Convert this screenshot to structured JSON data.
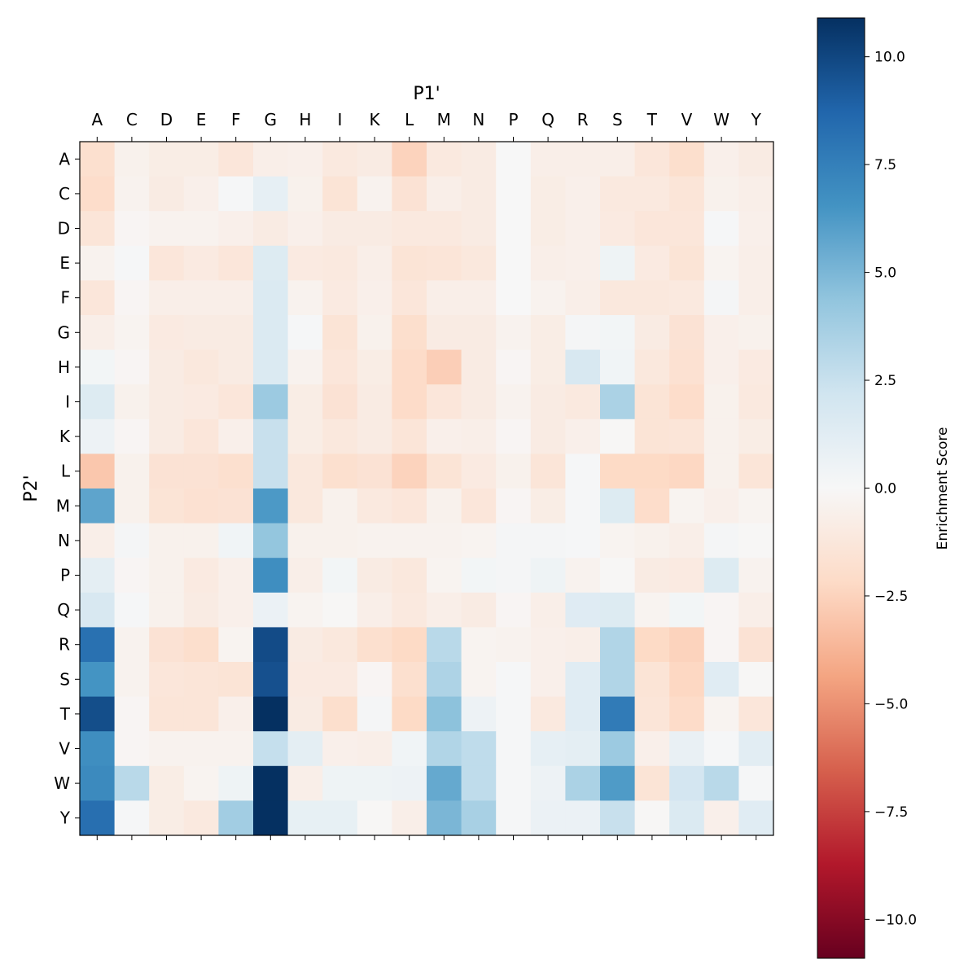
{
  "chart_data": {
    "type": "heatmap",
    "xlabel": "P1'",
    "ylabel": "P2'",
    "colorbar_label": "Enrichment Score",
    "colormap": "RdBu",
    "vlim": [
      -10.9,
      10.9
    ],
    "colorbar_ticks": [
      10.0,
      7.5,
      5.0,
      2.5,
      0.0,
      -2.5,
      -5.0,
      -7.5,
      -10.0
    ],
    "colorbar_tick_labels": [
      "10.0",
      "7.5",
      "5.0",
      "2.5",
      "0.0",
      "−2.5",
      "−5.0",
      "−7.5",
      "−10.0"
    ],
    "x_categories": [
      "A",
      "C",
      "D",
      "E",
      "F",
      "G",
      "H",
      "I",
      "K",
      "L",
      "M",
      "N",
      "P",
      "Q",
      "R",
      "S",
      "T",
      "V",
      "W",
      "Y"
    ],
    "y_categories": [
      "A",
      "C",
      "D",
      "E",
      "F",
      "G",
      "H",
      "I",
      "K",
      "L",
      "M",
      "N",
      "P",
      "Q",
      "R",
      "S",
      "T",
      "V",
      "W",
      "Y"
    ],
    "values": [
      [
        -1.8,
        -0.5,
        -0.8,
        -0.8,
        -1.3,
        -0.7,
        -0.6,
        -1.1,
        -0.9,
        -2.5,
        -1.1,
        -0.9,
        0,
        -0.7,
        -0.7,
        -0.7,
        -1.3,
        -1.9,
        -0.6,
        -0.9
      ],
      [
        -2.0,
        -0.4,
        -0.9,
        -0.6,
        0.1,
        1.0,
        -0.5,
        -1.5,
        -0.4,
        -1.6,
        -0.7,
        -0.9,
        0,
        -0.8,
        -0.6,
        -1.1,
        -1.1,
        -1.4,
        -0.5,
        -0.7
      ],
      [
        -1.4,
        -0.2,
        -0.4,
        -0.4,
        -0.6,
        -0.9,
        -0.6,
        -0.9,
        -0.9,
        -1.1,
        -1.1,
        -0.9,
        0,
        -0.8,
        -0.6,
        -1.0,
        -1.3,
        -1.3,
        0.1,
        -0.6
      ],
      [
        -0.4,
        0.1,
        -1.3,
        -1.0,
        -1.3,
        1.5,
        -1.0,
        -1.1,
        -0.7,
        -1.5,
        -1.4,
        -1.2,
        0,
        -0.7,
        -0.6,
        0.5,
        -1.0,
        -1.5,
        -0.3,
        -0.7
      ],
      [
        -1.3,
        -0.2,
        -0.7,
        -0.7,
        -0.7,
        1.6,
        -0.4,
        -1.0,
        -0.6,
        -1.3,
        -0.7,
        -0.7,
        0,
        -0.4,
        -0.7,
        -1.2,
        -1.2,
        -1.1,
        0.2,
        -0.7
      ],
      [
        -0.7,
        -0.3,
        -1.0,
        -0.9,
        -0.9,
        1.6,
        0.1,
        -1.5,
        -0.5,
        -1.9,
        -0.9,
        -0.9,
        -0.4,
        -0.8,
        0.2,
        0.3,
        -0.9,
        -1.6,
        -0.6,
        -0.5
      ],
      [
        0.3,
        -0.2,
        -0.9,
        -1.2,
        -0.9,
        1.6,
        -0.4,
        -1.3,
        -0.8,
        -2.1,
        -2.7,
        -0.9,
        -0.2,
        -0.8,
        1.8,
        0.4,
        -1.2,
        -1.7,
        -0.6,
        -1.0
      ],
      [
        1.5,
        -0.5,
        -0.9,
        -1.0,
        -1.3,
        4.0,
        -0.8,
        -1.6,
        -0.9,
        -2.1,
        -1.3,
        -0.9,
        -0.4,
        -0.9,
        -1.1,
        3.5,
        -1.5,
        -2.0,
        -0.5,
        -1.1
      ],
      [
        0.6,
        -0.2,
        -0.9,
        -1.3,
        -0.6,
        2.5,
        -0.8,
        -1.2,
        -0.9,
        -1.4,
        -0.6,
        -0.7,
        -0.2,
        -0.9,
        -0.6,
        -0.1,
        -1.5,
        -1.4,
        -0.5,
        -0.8
      ],
      [
        -3.0,
        -0.5,
        -1.6,
        -1.6,
        -1.8,
        2.5,
        -1.2,
        -1.8,
        -1.6,
        -2.5,
        -1.5,
        -1.0,
        -0.5,
        -1.4,
        0.1,
        -2.2,
        -2.2,
        -2.3,
        -0.5,
        -1.4
      ],
      [
        5.8,
        -0.5,
        -1.5,
        -1.7,
        -1.6,
        6.3,
        -1.2,
        -0.5,
        -1.1,
        -1.3,
        -0.5,
        -1.3,
        -0.2,
        -0.8,
        0.1,
        1.5,
        -2.0,
        -0.3,
        -0.6,
        -0.3
      ],
      [
        -0.7,
        0.2,
        -0.5,
        -0.5,
        0.4,
        4.3,
        -0.5,
        -0.5,
        -0.4,
        -0.4,
        -0.4,
        -0.3,
        0.2,
        0.2,
        0.1,
        -0.3,
        -0.5,
        -0.7,
        0.2,
        -0.1
      ],
      [
        1.1,
        -0.2,
        -0.5,
        -1.0,
        -0.6,
        6.8,
        -0.7,
        0.3,
        -0.9,
        -1.2,
        -0.3,
        0.3,
        0.2,
        0.5,
        -0.4,
        -0.1,
        -0.9,
        -1.0,
        1.5,
        -0.4
      ],
      [
        1.8,
        0.1,
        -0.5,
        -0.9,
        -0.6,
        0.7,
        -0.3,
        -0.1,
        -0.7,
        -1.1,
        -0.7,
        -0.9,
        -0.2,
        -0.7,
        1.4,
        1.5,
        -0.3,
        0.3,
        -0.2,
        -0.7
      ],
      [
        8.2,
        -0.4,
        -1.6,
        -1.9,
        -0.3,
        9.8,
        -0.9,
        -1.2,
        -1.8,
        -2.2,
        3.0,
        -0.3,
        -0.4,
        -0.6,
        -0.7,
        3.3,
        -2.2,
        -2.5,
        -0.2,
        -1.6
      ],
      [
        6.5,
        -0.4,
        -1.3,
        -1.4,
        -1.5,
        9.6,
        -1.0,
        -1.0,
        -0.2,
        -1.8,
        3.4,
        -0.3,
        0.1,
        -0.6,
        1.3,
        3.3,
        -1.5,
        -2.3,
        1.3,
        -0.1
      ],
      [
        9.7,
        -0.2,
        -1.4,
        -1.4,
        -0.6,
        10.9,
        -0.9,
        -1.9,
        0.2,
        -2.2,
        4.5,
        0.6,
        0.1,
        -1.1,
        1.3,
        7.7,
        -1.4,
        -2.1,
        -0.3,
        -1.3
      ],
      [
        6.8,
        -0.2,
        -0.4,
        -0.4,
        -0.4,
        2.6,
        1.1,
        -0.6,
        -0.7,
        0.4,
        3.3,
        2.8,
        0.1,
        1.0,
        1.1,
        4.0,
        -0.6,
        0.8,
        0.1,
        1.2
      ],
      [
        7.0,
        3.0,
        -0.8,
        -0.3,
        0.5,
        10.9,
        -0.7,
        0.5,
        0.5,
        0.6,
        5.6,
        2.8,
        0.1,
        0.6,
        3.5,
        6.2,
        -1.5,
        2.0,
        3.0,
        0.1
      ],
      [
        8.3,
        0.1,
        -0.8,
        -1.1,
        3.8,
        10.9,
        0.9,
        0.9,
        -0.1,
        -0.7,
        5.0,
        3.6,
        0.1,
        0.7,
        0.7,
        2.5,
        -0.1,
        1.6,
        -0.6,
        1.3
      ]
    ]
  }
}
